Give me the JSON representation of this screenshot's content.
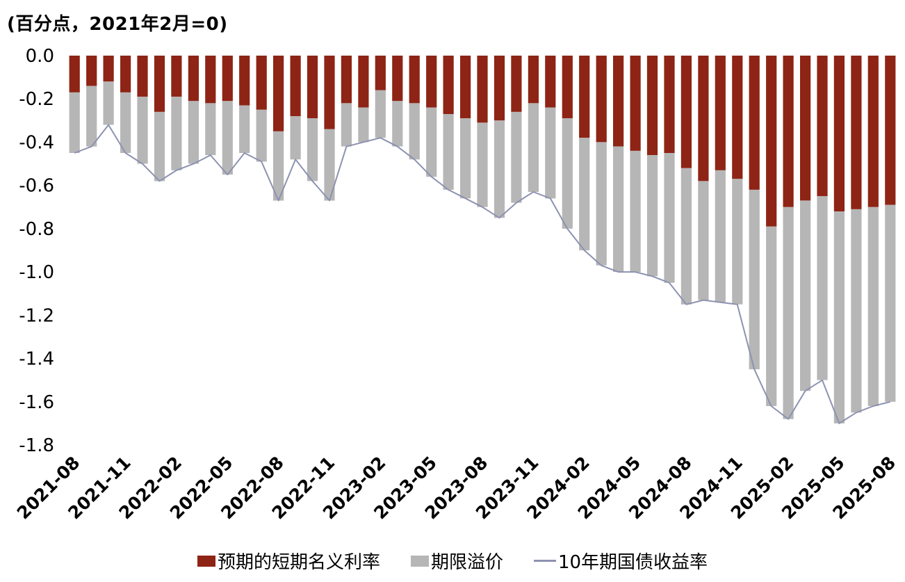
{
  "title": "(百分点，2021年2月=0)",
  "colors": {
    "bar_red": "#8e2415",
    "bar_gray": "#b6b6b6",
    "line": "#8d92b0",
    "text": "#000000",
    "background": "#ffffff"
  },
  "y_axis": {
    "tick_labels": [
      "0.0",
      "-0.2",
      "-0.4",
      "-0.6",
      "-0.8",
      "-1.0",
      "-1.2",
      "-1.4",
      "-1.6",
      "-1.8"
    ]
  },
  "legend": {
    "items": [
      {
        "label": "预期的短期名义利率",
        "swatch": "red-bar"
      },
      {
        "label": "期限溢价",
        "swatch": "gray-bar"
      },
      {
        "label": "10年期国债收益率",
        "swatch": "line"
      }
    ]
  },
  "chart_data": {
    "type": "stacked_bar_with_line",
    "title": "(百分点，2021年2月=0)",
    "xlabel": "",
    "ylabel": "百分点，2021年2月=0",
    "ylim": [
      -1.8,
      0
    ],
    "y_ticks": [
      0,
      -0.2,
      -0.4,
      -0.6,
      -0.8,
      -1.0,
      -1.2,
      -1.4,
      -1.6,
      -1.8
    ],
    "grid": false,
    "legend_position": "bottom",
    "categories": [
      "2021-08",
      "2021-09",
      "2021-10",
      "2021-11",
      "2021-12",
      "2022-01",
      "2022-02",
      "2022-03",
      "2022-04",
      "2022-05",
      "2022-06",
      "2022-07",
      "2022-08",
      "2022-09",
      "2022-10",
      "2022-11",
      "2022-12",
      "2023-01",
      "2023-02",
      "2023-03",
      "2023-04",
      "2023-05",
      "2023-06",
      "2023-07",
      "2023-08",
      "2023-09",
      "2023-10",
      "2023-11",
      "2023-12",
      "2024-01",
      "2024-02",
      "2024-03",
      "2024-04",
      "2024-05",
      "2024-06",
      "2024-07",
      "2024-08",
      "2024-09",
      "2024-10",
      "2024-11",
      "2024-12",
      "2025-01",
      "2025-02",
      "2025-03",
      "2025-04",
      "2025-05",
      "2025-06",
      "2025-07",
      "2025-08"
    ],
    "x_tick_labels": [
      "2021-08",
      "2021-11",
      "2022-02",
      "2022-05",
      "2022-08",
      "2022-11",
      "2023-02",
      "2023-05",
      "2023-08",
      "2023-11",
      "2024-02",
      "2024-05",
      "2024-08",
      "2024-11",
      "2025-02",
      "2025-05",
      "2025-08"
    ],
    "series": [
      {
        "name": "预期的短期名义利率",
        "type": "bar",
        "color": "#8e2415",
        "values": [
          -0.17,
          -0.14,
          -0.12,
          -0.17,
          -0.19,
          -0.26,
          -0.19,
          -0.21,
          -0.22,
          -0.21,
          -0.23,
          -0.25,
          -0.35,
          -0.28,
          -0.29,
          -0.34,
          -0.22,
          -0.24,
          -0.16,
          -0.21,
          -0.22,
          -0.24,
          -0.27,
          -0.29,
          -0.31,
          -0.3,
          -0.26,
          -0.22,
          -0.24,
          -0.29,
          -0.38,
          -0.4,
          -0.42,
          -0.44,
          -0.46,
          -0.45,
          -0.52,
          -0.58,
          -0.53,
          -0.57,
          -0.62,
          -0.79,
          -0.7,
          -0.67,
          -0.65,
          -0.72,
          -0.71,
          -0.7,
          -0.69
        ]
      },
      {
        "name": "期限溢价",
        "type": "bar",
        "color": "#b6b6b6",
        "values": [
          -0.28,
          -0.28,
          -0.2,
          -0.28,
          -0.31,
          -0.32,
          -0.34,
          -0.29,
          -0.24,
          -0.34,
          -0.22,
          -0.24,
          -0.32,
          -0.2,
          -0.29,
          -0.33,
          -0.2,
          -0.16,
          -0.22,
          -0.21,
          -0.26,
          -0.32,
          -0.35,
          -0.37,
          -0.39,
          -0.45,
          -0.42,
          -0.41,
          -0.42,
          -0.51,
          -0.52,
          -0.57,
          -0.58,
          -0.56,
          -0.56,
          -0.6,
          -0.63,
          -0.55,
          -0.61,
          -0.58,
          -0.83,
          -0.83,
          -0.98,
          -0.88,
          -0.85,
          -0.98,
          -0.94,
          -0.92,
          -0.91
        ]
      },
      {
        "name": "10年期国债收益率",
        "type": "line",
        "color": "#8d92b0",
        "values": [
          -0.45,
          -0.42,
          -0.32,
          -0.45,
          -0.5,
          -0.58,
          -0.53,
          -0.5,
          -0.46,
          -0.55,
          -0.45,
          -0.49,
          -0.67,
          -0.48,
          -0.58,
          -0.67,
          -0.42,
          -0.4,
          -0.38,
          -0.42,
          -0.48,
          -0.56,
          -0.62,
          -0.66,
          -0.7,
          -0.75,
          -0.68,
          -0.63,
          -0.66,
          -0.8,
          -0.9,
          -0.97,
          -1.0,
          -1.0,
          -1.02,
          -1.05,
          -1.15,
          -1.13,
          -1.14,
          -1.15,
          -1.45,
          -1.62,
          -1.68,
          -1.55,
          -1.5,
          -1.7,
          -1.65,
          -1.62,
          -1.6
        ]
      }
    ]
  }
}
